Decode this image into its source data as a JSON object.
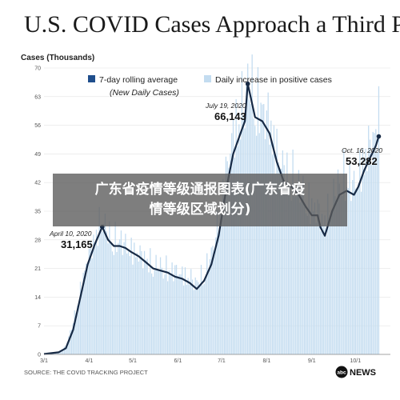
{
  "header": {
    "title": "U.S. COVID Cases Approach a Third Peak"
  },
  "watermark": {
    "line1": "广东省疫情等级通报图表(广东省疫",
    "line2": "情等级区域划分)"
  },
  "footer": {
    "source": "SOURCE: THE COVID TRACKING PROJECT",
    "brand": "NEWS",
    "brand_logo": "abc"
  },
  "colors": {
    "line": "#172a45",
    "bars": "#c3dcf0",
    "legend_avg": "#1f4e8c",
    "legend_daily": "#c3dcf0"
  },
  "chart_data": {
    "type": "bar",
    "ylabel": "Cases (Thousands)",
    "ylim": [
      0,
      70
    ],
    "yticks": [
      0,
      7,
      14,
      21,
      28,
      35,
      42,
      49,
      56,
      63,
      70
    ],
    "x_start": "3/1",
    "x_end": "10/25",
    "x_ticks": [
      {
        "label": "3/1",
        "day": 0
      },
      {
        "label": "4/1",
        "day": 31
      },
      {
        "label": "5/1",
        "day": 61
      },
      {
        "label": "6/1",
        "day": 92
      },
      {
        "label": "7/1",
        "day": 122
      },
      {
        "label": "8/1",
        "day": 153
      },
      {
        "label": "9/1",
        "day": 184
      },
      {
        "label": "10/1",
        "day": 214
      }
    ],
    "legend": [
      {
        "label": "7-day rolling average",
        "sublabel": "(New Daily Cases)",
        "kind": "line"
      },
      {
        "label": "Daily increase in positive cases",
        "kind": "bar"
      }
    ],
    "series": [
      {
        "name": "7-day rolling average",
        "type": "line",
        "points": [
          [
            0,
            0.1
          ],
          [
            10,
            0.5
          ],
          [
            15,
            1.5
          ],
          [
            20,
            6
          ],
          [
            25,
            14
          ],
          [
            30,
            22
          ],
          [
            35,
            27
          ],
          [
            40,
            31.165
          ],
          [
            44,
            28
          ],
          [
            48,
            26.5
          ],
          [
            52,
            26.5
          ],
          [
            56,
            26
          ],
          [
            60,
            25
          ],
          [
            65,
            24
          ],
          [
            70,
            22.5
          ],
          [
            75,
            21
          ],
          [
            80,
            20.5
          ],
          [
            85,
            20
          ],
          [
            90,
            19
          ],
          [
            95,
            18.5
          ],
          [
            100,
            17.5
          ],
          [
            105,
            16
          ],
          [
            110,
            18
          ],
          [
            115,
            22
          ],
          [
            120,
            29
          ],
          [
            125,
            40
          ],
          [
            130,
            49
          ],
          [
            135,
            54
          ],
          [
            138,
            57
          ],
          [
            140,
            66.143
          ],
          [
            145,
            58
          ],
          [
            150,
            57
          ],
          [
            155,
            54
          ],
          [
            160,
            47
          ],
          [
            165,
            42
          ],
          [
            170,
            41
          ],
          [
            175,
            39
          ],
          [
            180,
            36
          ],
          [
            184,
            34
          ],
          [
            188,
            34
          ],
          [
            190,
            31
          ],
          [
            193,
            29
          ],
          [
            198,
            35
          ],
          [
            203,
            39
          ],
          [
            208,
            40
          ],
          [
            213,
            39
          ],
          [
            216,
            41
          ],
          [
            220,
            45
          ],
          [
            224,
            48
          ],
          [
            228,
            51
          ],
          [
            230,
            53.282
          ]
        ],
        "annotations": [
          {
            "date": "April 10, 2020",
            "value": "31,165",
            "day": 40,
            "y": 31.165
          },
          {
            "date": "July 19, 2020",
            "value": "66,143",
            "day": 140,
            "y": 66.143
          },
          {
            "date": "Oct. 16, 2020",
            "value": "53,282",
            "day": 230,
            "y": 53.282
          }
        ]
      },
      {
        "name": "Daily increase in positive cases",
        "type": "bar",
        "points": [
          [
            0,
            0
          ],
          [
            10,
            0.5
          ],
          [
            15,
            2
          ],
          [
            20,
            8
          ],
          [
            25,
            16
          ],
          [
            30,
            24
          ],
          [
            35,
            29
          ],
          [
            40,
            34
          ],
          [
            44,
            30
          ],
          [
            48,
            28
          ],
          [
            52,
            29
          ],
          [
            56,
            27
          ],
          [
            60,
            26
          ],
          [
            65,
            25
          ],
          [
            70,
            24
          ],
          [
            75,
            22
          ],
          [
            80,
            22
          ],
          [
            85,
            21
          ],
          [
            90,
            21
          ],
          [
            95,
            20
          ],
          [
            100,
            19
          ],
          [
            105,
            18
          ],
          [
            110,
            20
          ],
          [
            115,
            25
          ],
          [
            120,
            33
          ],
          [
            125,
            45
          ],
          [
            130,
            55
          ],
          [
            135,
            60
          ],
          [
            138,
            63
          ],
          [
            140,
            68
          ],
          [
            145,
            63
          ],
          [
            150,
            61
          ],
          [
            155,
            58
          ],
          [
            160,
            50
          ],
          [
            165,
            46
          ],
          [
            170,
            44
          ],
          [
            175,
            42
          ],
          [
            180,
            38
          ],
          [
            184,
            37
          ],
          [
            188,
            36
          ],
          [
            190,
            34
          ],
          [
            193,
            33
          ],
          [
            198,
            38
          ],
          [
            203,
            43
          ],
          [
            208,
            44
          ],
          [
            213,
            42
          ],
          [
            216,
            44
          ],
          [
            220,
            49
          ],
          [
            224,
            52
          ],
          [
            228,
            55
          ],
          [
            230,
            58
          ]
        ]
      }
    ]
  }
}
